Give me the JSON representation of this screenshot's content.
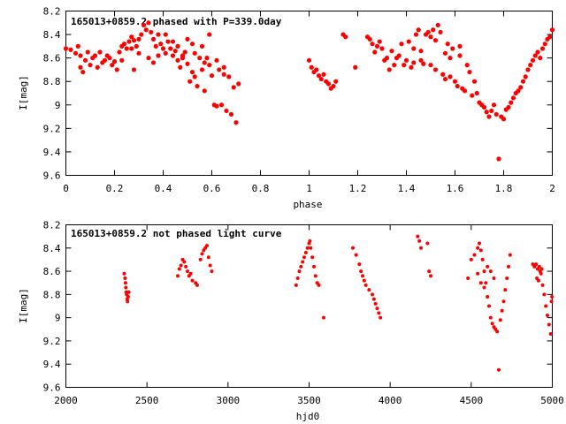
{
  "chart_data": [
    {
      "type": "scatter",
      "title": "165013+0859.2 phased with P=339.0day",
      "xlabel": "phase",
      "ylabel": "I[mag]",
      "xlim": [
        0,
        2
      ],
      "ylim": [
        8.2,
        9.6
      ],
      "y_inverted": true,
      "x_ticks": [
        "0",
        "0.2",
        "0.4",
        "0.6",
        "0.8",
        "1",
        "1.2",
        "1.4",
        "1.6",
        "1.8",
        "2"
      ],
      "y_ticks": [
        "8.2",
        "8.4",
        "8.6",
        "8.8",
        "9",
        "9.2",
        "9.4",
        "9.6"
      ],
      "grid": false,
      "marker_color": "#ff0000",
      "points": [
        [
          0.0,
          8.52
        ],
        [
          0.02,
          8.53
        ],
        [
          0.04,
          8.56
        ],
        [
          0.05,
          8.5
        ],
        [
          0.06,
          8.58
        ],
        [
          0.07,
          8.72
        ],
        [
          0.08,
          8.62
        ],
        [
          0.09,
          8.55
        ],
        [
          0.1,
          8.66
        ],
        [
          0.11,
          8.6
        ],
        [
          0.12,
          8.58
        ],
        [
          0.13,
          8.68
        ],
        [
          0.14,
          8.55
        ],
        [
          0.15,
          8.64
        ],
        [
          0.16,
          8.62
        ],
        [
          0.17,
          8.58
        ],
        [
          0.18,
          8.6
        ],
        [
          0.19,
          8.66
        ],
        [
          0.2,
          8.63
        ],
        [
          0.21,
          8.7
        ],
        [
          0.22,
          8.55
        ],
        [
          0.23,
          8.5
        ],
        [
          0.24,
          8.48
        ],
        [
          0.25,
          8.52
        ],
        [
          0.26,
          8.46
        ],
        [
          0.27,
          8.42
        ],
        [
          0.28,
          8.45
        ],
        [
          0.29,
          8.5
        ],
        [
          0.3,
          8.44
        ],
        [
          0.31,
          8.4
        ],
        [
          0.32,
          8.32
        ],
        [
          0.33,
          8.36
        ],
        [
          0.34,
          8.3
        ],
        [
          0.35,
          8.38
        ],
        [
          0.36,
          8.44
        ],
        [
          0.37,
          8.5
        ],
        [
          0.38,
          8.4
        ],
        [
          0.39,
          8.48
        ],
        [
          0.4,
          8.52
        ],
        [
          0.41,
          8.56
        ],
        [
          0.42,
          8.46
        ],
        [
          0.43,
          8.52
        ],
        [
          0.44,
          8.58
        ],
        [
          0.45,
          8.54
        ],
        [
          0.46,
          8.62
        ],
        [
          0.47,
          8.68
        ],
        [
          0.48,
          8.6
        ],
        [
          0.49,
          8.55
        ],
        [
          0.5,
          8.65
        ],
        [
          0.51,
          8.8
        ],
        [
          0.52,
          8.72
        ],
        [
          0.53,
          8.76
        ],
        [
          0.54,
          8.84
        ],
        [
          0.55,
          8.6
        ],
        [
          0.56,
          8.7
        ],
        [
          0.57,
          8.88
        ],
        [
          0.58,
          8.6
        ],
        [
          0.59,
          8.66
        ],
        [
          0.6,
          8.75
        ],
        [
          0.61,
          9.0
        ],
        [
          0.62,
          9.01
        ],
        [
          0.63,
          8.7
        ],
        [
          0.64,
          9.0
        ],
        [
          0.65,
          8.74
        ],
        [
          0.66,
          9.05
        ],
        [
          0.67,
          8.76
        ],
        [
          0.68,
          9.08
        ],
        [
          0.69,
          8.85
        ],
        [
          0.7,
          9.15
        ],
        [
          0.71,
          8.82
        ],
        [
          0.23,
          8.62
        ],
        [
          0.28,
          8.7
        ],
        [
          0.34,
          8.6
        ],
        [
          0.41,
          8.4
        ],
        [
          0.44,
          8.46
        ],
        [
          0.48,
          8.58
        ],
        [
          0.5,
          8.44
        ],
        [
          0.53,
          8.56
        ],
        [
          0.56,
          8.5
        ],
        [
          0.59,
          8.4
        ],
        [
          0.3,
          8.56
        ],
        [
          0.27,
          8.52
        ],
        [
          0.36,
          8.64
        ],
        [
          0.38,
          8.58
        ],
        [
          0.46,
          8.5
        ],
        [
          0.52,
          8.48
        ],
        [
          0.57,
          8.64
        ],
        [
          0.62,
          8.62
        ],
        [
          0.65,
          8.68
        ],
        [
          0.06,
          8.68
        ],
        [
          1.0,
          8.62
        ],
        [
          1.01,
          8.68
        ],
        [
          1.02,
          8.72
        ],
        [
          1.03,
          8.7
        ],
        [
          1.04,
          8.75
        ],
        [
          1.05,
          8.78
        ],
        [
          1.06,
          8.74
        ],
        [
          1.07,
          8.8
        ],
        [
          1.08,
          8.82
        ],
        [
          1.09,
          8.86
        ],
        [
          1.1,
          8.84
        ],
        [
          1.11,
          8.8
        ],
        [
          1.14,
          8.4
        ],
        [
          1.15,
          8.42
        ],
        [
          1.19,
          8.68
        ],
        [
          1.24,
          8.42
        ],
        [
          1.25,
          8.44
        ],
        [
          1.26,
          8.48
        ],
        [
          1.27,
          8.55
        ],
        [
          1.28,
          8.5
        ],
        [
          1.29,
          8.46
        ],
        [
          1.3,
          8.52
        ],
        [
          1.31,
          8.62
        ],
        [
          1.32,
          8.6
        ],
        [
          1.33,
          8.7
        ],
        [
          1.34,
          8.54
        ],
        [
          1.35,
          8.66
        ],
        [
          1.36,
          8.6
        ],
        [
          1.37,
          8.58
        ],
        [
          1.38,
          8.48
        ],
        [
          1.39,
          8.66
        ],
        [
          1.4,
          8.62
        ],
        [
          1.41,
          8.46
        ],
        [
          1.42,
          8.68
        ],
        [
          1.43,
          8.64
        ],
        [
          1.44,
          8.4
        ],
        [
          1.45,
          8.36
        ],
        [
          1.46,
          8.62
        ],
        [
          1.47,
          8.65
        ],
        [
          1.48,
          8.4
        ],
        [
          1.49,
          8.38
        ],
        [
          1.5,
          8.42
        ],
        [
          1.51,
          8.36
        ],
        [
          1.52,
          8.45
        ],
        [
          1.53,
          8.32
        ],
        [
          1.54,
          8.38
        ],
        [
          1.55,
          8.74
        ],
        [
          1.56,
          8.78
        ],
        [
          1.57,
          8.48
        ],
        [
          1.58,
          8.76
        ],
        [
          1.59,
          8.52
        ],
        [
          1.6,
          8.8
        ],
        [
          1.61,
          8.84
        ],
        [
          1.62,
          8.58
        ],
        [
          1.63,
          8.86
        ],
        [
          1.64,
          8.88
        ],
        [
          1.65,
          8.66
        ],
        [
          1.66,
          8.72
        ],
        [
          1.67,
          8.92
        ],
        [
          1.68,
          8.8
        ],
        [
          1.69,
          8.9
        ],
        [
          1.7,
          8.98
        ],
        [
          1.71,
          9.0
        ],
        [
          1.72,
          9.02
        ],
        [
          1.73,
          9.06
        ],
        [
          1.74,
          9.1
        ],
        [
          1.75,
          9.05
        ],
        [
          1.76,
          9.0
        ],
        [
          1.77,
          9.08
        ],
        [
          1.78,
          9.46
        ],
        [
          1.79,
          9.1
        ],
        [
          1.8,
          9.12
        ],
        [
          1.81,
          9.04
        ],
        [
          1.82,
          9.02
        ],
        [
          1.83,
          8.98
        ],
        [
          1.84,
          8.94
        ],
        [
          1.85,
          8.9
        ],
        [
          1.86,
          8.88
        ],
        [
          1.87,
          8.85
        ],
        [
          1.88,
          8.8
        ],
        [
          1.89,
          8.76
        ],
        [
          1.9,
          8.7
        ],
        [
          1.91,
          8.66
        ],
        [
          1.92,
          8.62
        ],
        [
          1.93,
          8.58
        ],
        [
          1.94,
          8.55
        ],
        [
          1.95,
          8.6
        ],
        [
          1.96,
          8.52
        ],
        [
          1.97,
          8.48
        ],
        [
          1.98,
          8.44
        ],
        [
          1.99,
          8.42
        ],
        [
          2.0,
          8.36
        ],
        [
          1.43,
          8.52
        ],
        [
          1.46,
          8.54
        ],
        [
          1.5,
          8.66
        ],
        [
          1.52,
          8.7
        ],
        [
          1.56,
          8.56
        ],
        [
          1.58,
          8.6
        ],
        [
          1.62,
          8.5
        ]
      ]
    },
    {
      "type": "scatter",
      "title": "165013+0859.2 not phased light curve",
      "xlabel": "hjd0",
      "ylabel": "I[mag]",
      "xlim": [
        2000,
        5000
      ],
      "ylim": [
        8.2,
        9.6
      ],
      "y_inverted": true,
      "x_ticks": [
        "2000",
        "2500",
        "3000",
        "3500",
        "4000",
        "4500",
        "5000"
      ],
      "y_ticks": [
        "8.2",
        "8.4",
        "8.6",
        "8.8",
        "9",
        "9.2",
        "9.4",
        "9.6"
      ],
      "grid": false,
      "marker_color": "#ff0000",
      "points": [
        [
          2360,
          8.62
        ],
        [
          2365,
          8.66
        ],
        [
          2368,
          8.7
        ],
        [
          2370,
          8.74
        ],
        [
          2372,
          8.78
        ],
        [
          2375,
          8.8
        ],
        [
          2378,
          8.84
        ],
        [
          2380,
          8.86
        ],
        [
          2384,
          8.82
        ],
        [
          2388,
          8.78
        ],
        [
          2690,
          8.64
        ],
        [
          2700,
          8.58
        ],
        [
          2710,
          8.55
        ],
        [
          2720,
          8.5
        ],
        [
          2730,
          8.52
        ],
        [
          2740,
          8.56
        ],
        [
          2750,
          8.6
        ],
        [
          2760,
          8.64
        ],
        [
          2770,
          8.62
        ],
        [
          2780,
          8.68
        ],
        [
          2800,
          8.7
        ],
        [
          2810,
          8.72
        ],
        [
          2830,
          8.5
        ],
        [
          2840,
          8.45
        ],
        [
          2850,
          8.42
        ],
        [
          2860,
          8.4
        ],
        [
          2870,
          8.38
        ],
        [
          2880,
          8.48
        ],
        [
          2890,
          8.55
        ],
        [
          2900,
          8.6
        ],
        [
          3420,
          8.72
        ],
        [
          3430,
          8.66
        ],
        [
          3440,
          8.6
        ],
        [
          3450,
          8.56
        ],
        [
          3460,
          8.52
        ],
        [
          3470,
          8.48
        ],
        [
          3480,
          8.44
        ],
        [
          3490,
          8.4
        ],
        [
          3500,
          8.36
        ],
        [
          3505,
          8.34
        ],
        [
          3510,
          8.4
        ],
        [
          3520,
          8.48
        ],
        [
          3530,
          8.56
        ],
        [
          3540,
          8.64
        ],
        [
          3550,
          8.7
        ],
        [
          3560,
          8.72
        ],
        [
          3590,
          9.0
        ],
        [
          3770,
          8.4
        ],
        [
          3790,
          8.46
        ],
        [
          3810,
          8.54
        ],
        [
          3820,
          8.6
        ],
        [
          3830,
          8.64
        ],
        [
          3840,
          8.68
        ],
        [
          3850,
          8.72
        ],
        [
          3870,
          8.76
        ],
        [
          3890,
          8.8
        ],
        [
          3900,
          8.84
        ],
        [
          3910,
          8.88
        ],
        [
          3920,
          8.92
        ],
        [
          3930,
          8.96
        ],
        [
          3940,
          9.0
        ],
        [
          4170,
          8.3
        ],
        [
          4180,
          8.34
        ],
        [
          4190,
          8.4
        ],
        [
          4230,
          8.36
        ],
        [
          4240,
          8.6
        ],
        [
          4250,
          8.64
        ],
        [
          4480,
          8.66
        ],
        [
          4500,
          8.5
        ],
        [
          4520,
          8.46
        ],
        [
          4540,
          8.4
        ],
        [
          4550,
          8.36
        ],
        [
          4560,
          8.42
        ],
        [
          4570,
          8.5
        ],
        [
          4580,
          8.6
        ],
        [
          4590,
          8.7
        ],
        [
          4600,
          8.82
        ],
        [
          4610,
          8.9
        ],
        [
          4620,
          9.0
        ],
        [
          4630,
          9.05
        ],
        [
          4640,
          9.08
        ],
        [
          4650,
          9.1
        ],
        [
          4660,
          9.12
        ],
        [
          4670,
          9.45
        ],
        [
          4680,
          9.02
        ],
        [
          4690,
          8.94
        ],
        [
          4700,
          8.86
        ],
        [
          4710,
          8.76
        ],
        [
          4720,
          8.66
        ],
        [
          4730,
          8.56
        ],
        [
          4740,
          8.46
        ],
        [
          4540,
          8.62
        ],
        [
          4560,
          8.7
        ],
        [
          4580,
          8.74
        ],
        [
          4600,
          8.56
        ],
        [
          4620,
          8.6
        ],
        [
          4640,
          8.66
        ],
        [
          4880,
          8.54
        ],
        [
          4890,
          8.56
        ],
        [
          4900,
          8.54
        ],
        [
          4910,
          8.58
        ],
        [
          4920,
          8.56
        ],
        [
          4930,
          8.62
        ],
        [
          4940,
          8.72
        ],
        [
          4950,
          8.8
        ],
        [
          4960,
          8.9
        ],
        [
          4970,
          8.98
        ],
        [
          4980,
          9.06
        ],
        [
          4990,
          9.14
        ],
        [
          4995,
          8.86
        ],
        [
          4998,
          8.82
        ],
        [
          4905,
          8.66
        ],
        [
          4915,
          8.68
        ],
        [
          4925,
          8.6
        ],
        [
          4935,
          8.58
        ]
      ]
    }
  ]
}
